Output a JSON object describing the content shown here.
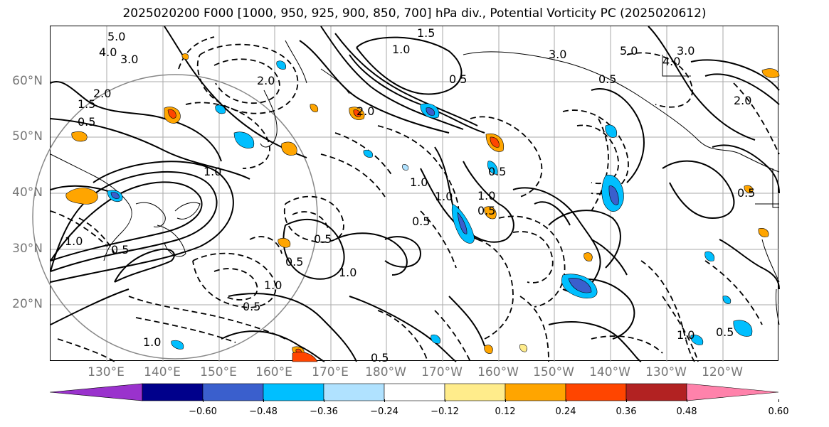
{
  "title": "2025020200 F000 [1000, 950, 925, 900, 850, 700] hPa div., Potential Vorticity PC (2025020612)",
  "lat_labels": [
    "60°N",
    "50°N",
    "40°N",
    "30°N",
    "20°N"
  ],
  "lon_labels": [
    "130°E",
    "140°E",
    "150°E",
    "160°E",
    "170°E",
    "180°W",
    "170°W",
    "160°W",
    "150°W",
    "140°W",
    "130°W",
    "120°W"
  ],
  "colorbar": {
    "colors": [
      "#9a32cd",
      "#00008b",
      "#3a5fcd",
      "#00bfff",
      "#b0e2ff",
      "#ffffff",
      "#ffec8b",
      "#ffa500",
      "#ff4500",
      "#b22222",
      "#ff82ab"
    ],
    "ticks": [
      "−0.60",
      "−0.48",
      "−0.36",
      "−0.24",
      "−0.12",
      "0.12",
      "0.24",
      "0.36",
      "0.48",
      "0.60"
    ]
  },
  "contour_labels": [
    "5.0",
    "4.0",
    "3.0",
    "2.0",
    "1.0",
    "0.5",
    "1.5",
    "1.0",
    "0.5",
    "2.0",
    "1.0",
    "0.5",
    "1.0",
    "0.5",
    "1.0",
    "0.5",
    "2.0",
    "1.0",
    "0.5",
    "3.0",
    "1.5",
    "0.5",
    "1.0",
    "0.5",
    "1.0",
    "0.5",
    "0.5",
    "1.0",
    "0.5",
    "5.0",
    "4.0",
    "3.0",
    "2.0",
    "0.5",
    "1.0",
    "0.5"
  ],
  "colors": {
    "axis_label": "#777777",
    "coast": "#000000",
    "grid": "#aaaaaa",
    "circle": "#888888"
  }
}
